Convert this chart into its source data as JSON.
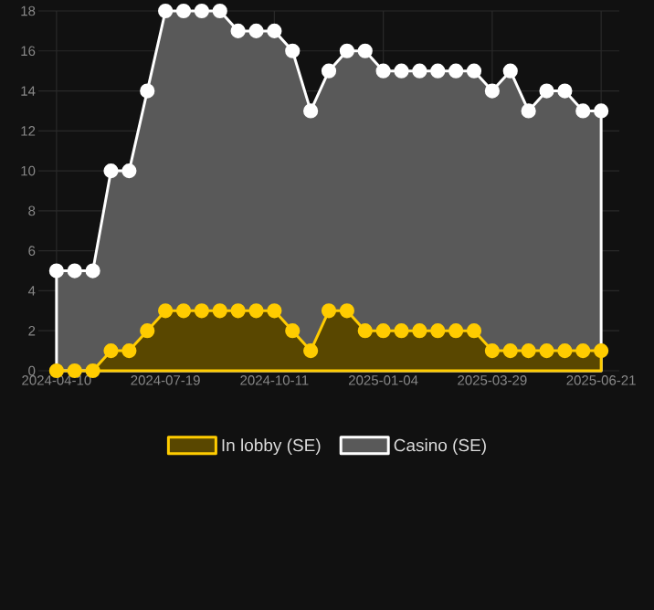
{
  "chart_data": {
    "type": "area",
    "categories": [
      "2024-04-10",
      null,
      null,
      null,
      null,
      null,
      "2024-07-19",
      null,
      null,
      null,
      null,
      null,
      "2024-10-11",
      null,
      null,
      null,
      null,
      null,
      "2025-01-04",
      null,
      null,
      null,
      null,
      null,
      "2025-03-29",
      null,
      null,
      null,
      null,
      null,
      "2025-06-21"
    ],
    "series": [
      {
        "name": "In lobby (SE)",
        "color": "#ffcc00",
        "values": [
          0,
          0,
          0,
          1,
          1,
          2,
          3,
          3,
          3,
          3,
          3,
          3,
          3,
          2,
          1,
          3,
          3,
          2,
          2,
          2,
          2,
          2,
          2,
          2,
          1,
          1,
          1,
          1,
          1,
          1,
          1
        ]
      },
      {
        "name": "Casino (SE)",
        "color": "#ffffff",
        "values": [
          5,
          5,
          5,
          10,
          10,
          14,
          18,
          18,
          18,
          18,
          17,
          17,
          17,
          16,
          13,
          15,
          16,
          16,
          15,
          15,
          15,
          15,
          15,
          15,
          14,
          15,
          13,
          14,
          14,
          13,
          13
        ]
      }
    ],
    "ylim": [
      0,
      18
    ],
    "yticks": [
      0,
      2,
      4,
      6,
      8,
      10,
      12,
      14,
      16,
      18
    ],
    "grid": true,
    "legend": "bottom",
    "marker": "circle",
    "line_style": "solid"
  }
}
